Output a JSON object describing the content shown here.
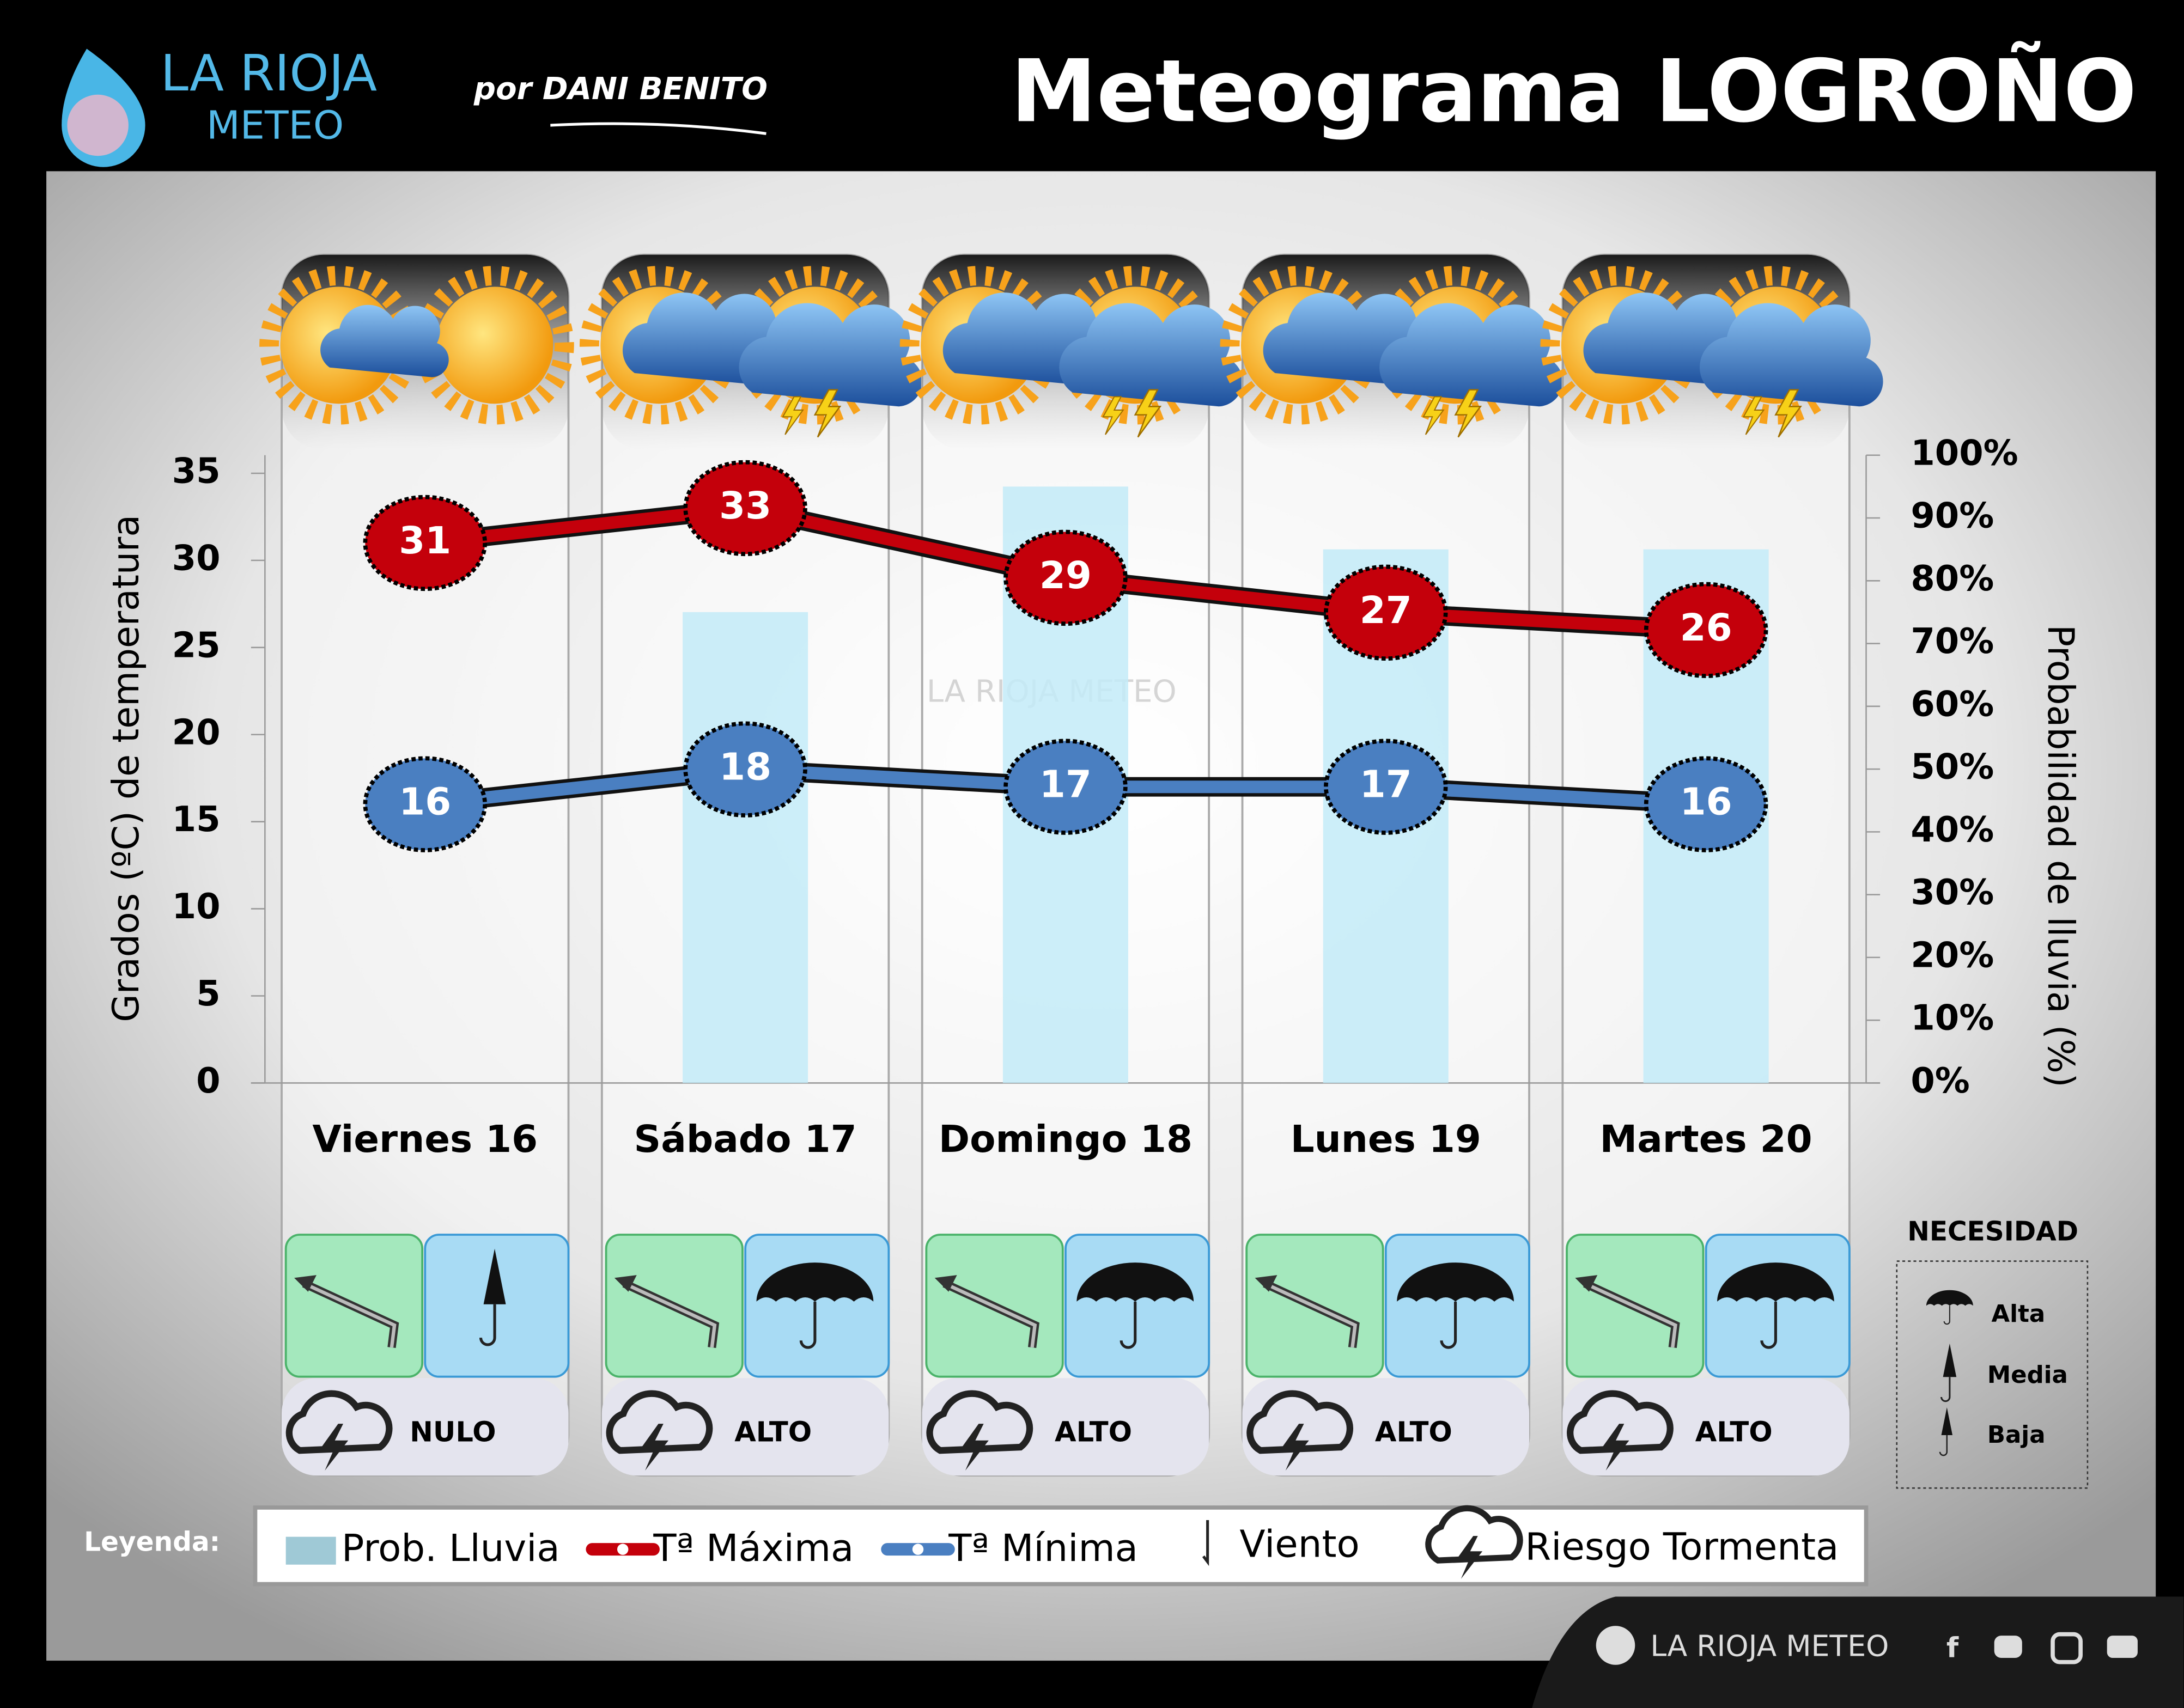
{
  "header": {
    "logo_top": "LA RIOJA",
    "logo_bottom": "METEO",
    "author": "por DANI BENITO",
    "title": "Meteograma LOGROÑO"
  },
  "chart_data": {
    "type": "line",
    "categories": [
      "Viernes 16",
      "Sábado 17",
      "Domingo 18",
      "Lunes 19",
      "Martes 20"
    ],
    "series": [
      {
        "name": "Prob. Lluvia",
        "type": "bar",
        "axis": "y2",
        "color": "#c3ebf8",
        "values": [
          0,
          75,
          95,
          85,
          85
        ]
      },
      {
        "name": "Tª Máxima",
        "color": "#c4000b",
        "values": [
          31,
          33,
          29,
          27,
          26
        ]
      },
      {
        "name": "Tª Mínima",
        "color": "#4a7fc1",
        "values": [
          16,
          18,
          17,
          17,
          16
        ]
      }
    ],
    "ylabel": "Grados (ºC) de temperatura",
    "y2label": "Probabilidad de lluvia (%)",
    "ylim": [
      0,
      35
    ],
    "yticks": [
      0,
      5,
      10,
      15,
      20,
      25,
      30,
      35
    ],
    "y2lim": [
      0,
      100
    ],
    "y2ticks": [
      {
        "value": 0,
        "label": "0%"
      },
      {
        "value": 10,
        "label": "10%"
      },
      {
        "value": 20,
        "label": "20%"
      },
      {
        "value": 30,
        "label": "30%"
      },
      {
        "value": 40,
        "label": "40%"
      },
      {
        "value": 50,
        "label": "50%"
      },
      {
        "value": 60,
        "label": "60%"
      },
      {
        "value": 70,
        "label": "70%"
      },
      {
        "value": 80,
        "label": "80%"
      },
      {
        "value": 90,
        "label": "90%"
      },
      {
        "value": 100,
        "label": "100%"
      }
    ],
    "storm_risk": [
      "NULO",
      "ALTO",
      "ALTO",
      "ALTO",
      "ALTO"
    ],
    "watermark": "LA RIOJA METEO"
  },
  "legend": {
    "title": "Leyenda:",
    "wind": "Viento",
    "storm": "Riesgo Tormenta"
  },
  "necesidad": {
    "title": "NECESIDAD",
    "items": [
      "Alta",
      "Media",
      "Baja"
    ]
  },
  "footer": {
    "brand": "LA RIOJA METEO"
  }
}
